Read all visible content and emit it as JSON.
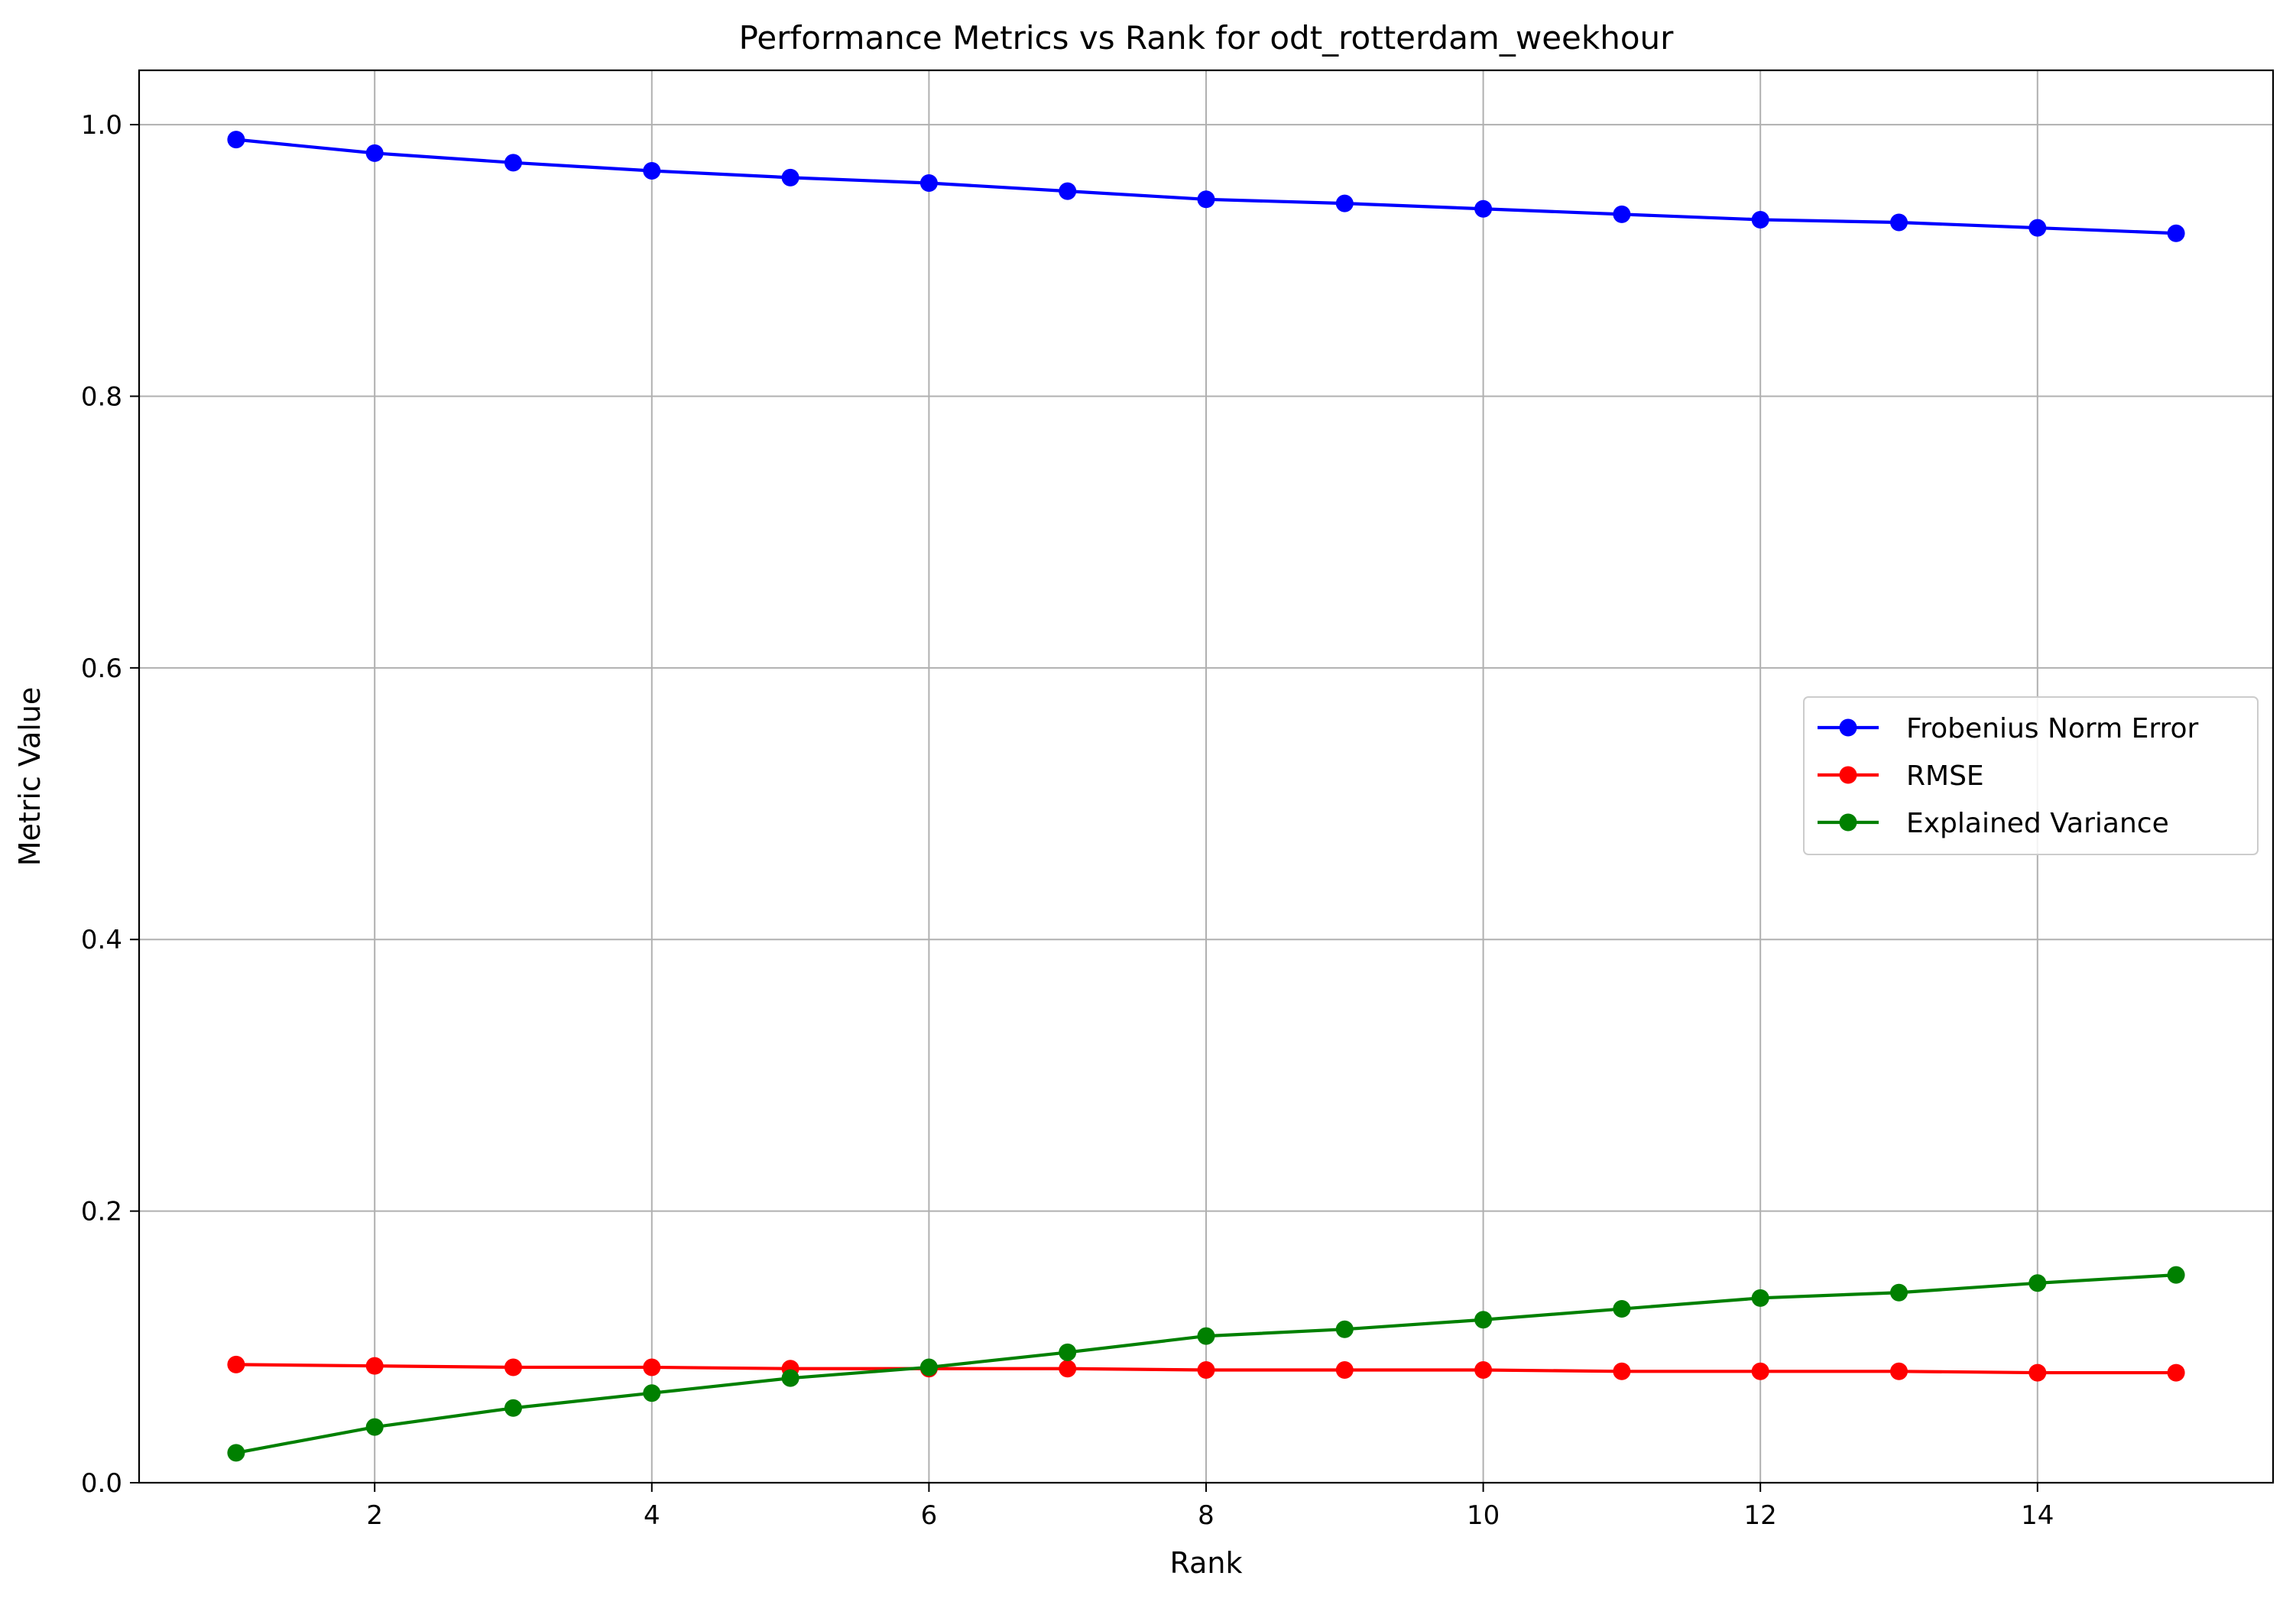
{
  "chart_data": {
    "type": "line",
    "title": "Performance Metrics vs Rank for odt_rotterdam_weekhour",
    "xlabel": "Rank",
    "ylabel": "Metric Value",
    "xlim": [
      0.3,
      15.7
    ],
    "ylim": [
      0.0,
      1.04
    ],
    "xticks": [
      2,
      4,
      6,
      8,
      10,
      12,
      14
    ],
    "yticks": [
      0.0,
      0.2,
      0.4,
      0.6,
      0.8,
      1.0
    ],
    "xtick_labels": [
      "2",
      "4",
      "6",
      "8",
      "10",
      "12",
      "14"
    ],
    "ytick_labels": [
      "0.0",
      "0.2",
      "0.4",
      "0.6",
      "0.8",
      "1.0"
    ],
    "grid": true,
    "legend_position": "center-right",
    "x": [
      1,
      2,
      3,
      4,
      5,
      6,
      7,
      8,
      9,
      10,
      11,
      12,
      13,
      14,
      15
    ],
    "series": [
      {
        "name": "Frobenius Norm Error",
        "color": "#0000ff",
        "marker": "circle",
        "values": [
          0.989,
          0.979,
          0.972,
          0.966,
          0.961,
          0.957,
          0.951,
          0.945,
          0.942,
          0.938,
          0.934,
          0.93,
          0.928,
          0.924,
          0.92
        ]
      },
      {
        "name": "RMSE",
        "color": "#ff0000",
        "marker": "circle",
        "values": [
          0.087,
          0.086,
          0.085,
          0.085,
          0.084,
          0.084,
          0.084,
          0.083,
          0.083,
          0.083,
          0.082,
          0.082,
          0.082,
          0.081,
          0.081
        ]
      },
      {
        "name": "Explained Variance",
        "color": "#008000",
        "marker": "circle",
        "values": [
          0.022,
          0.041,
          0.055,
          0.066,
          0.077,
          0.085,
          0.096,
          0.108,
          0.113,
          0.12,
          0.128,
          0.136,
          0.14,
          0.147,
          0.153
        ]
      }
    ]
  }
}
